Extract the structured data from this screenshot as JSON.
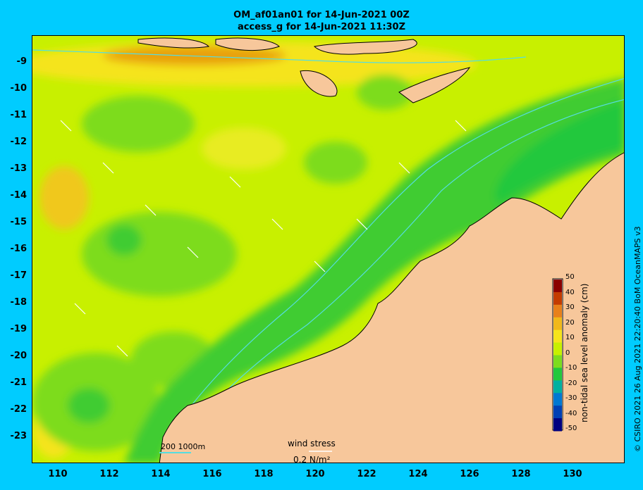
{
  "header": {
    "title_line1": "OM_af01an01 for 14-Jun-2021 00Z",
    "title_line2": "access_g for 14-Jun-2021 11:30Z"
  },
  "axes": {
    "y_ticks": [
      "-9",
      "-10",
      "-11",
      "-12",
      "-13",
      "-14",
      "-15",
      "-16",
      "-17",
      "-18",
      "-19",
      "-20",
      "-21",
      "-22",
      "-23"
    ],
    "x_ticks": [
      "110",
      "112",
      "114",
      "116",
      "118",
      "120",
      "122",
      "124",
      "126",
      "128",
      "130"
    ]
  },
  "colorbar": {
    "label": "non-tidal sea level anomaly (cm)",
    "ticks": [
      "50",
      "40",
      "30",
      "20",
      "10",
      "0",
      "-10",
      "-20",
      "-30",
      "-40",
      "-50"
    ],
    "colors": [
      "#8b0000",
      "#c43c00",
      "#e8801a",
      "#f0b81a",
      "#f5e41a",
      "#c8f000",
      "#7ddc1e",
      "#22c83c",
      "#00b0a0",
      "#0078d2",
      "#0040b4",
      "#000080"
    ]
  },
  "scale_bar": {
    "label": "200  1000m"
  },
  "wind_key": {
    "title": "wind stress",
    "value": "0.2 N/m²"
  },
  "credit": "© CSIRO 2021   26 Aug 2021 22:20:40 BoM OceanMAPS v3",
  "land_color": "#f7c79b",
  "bathymetry_color": "#55dde0"
}
